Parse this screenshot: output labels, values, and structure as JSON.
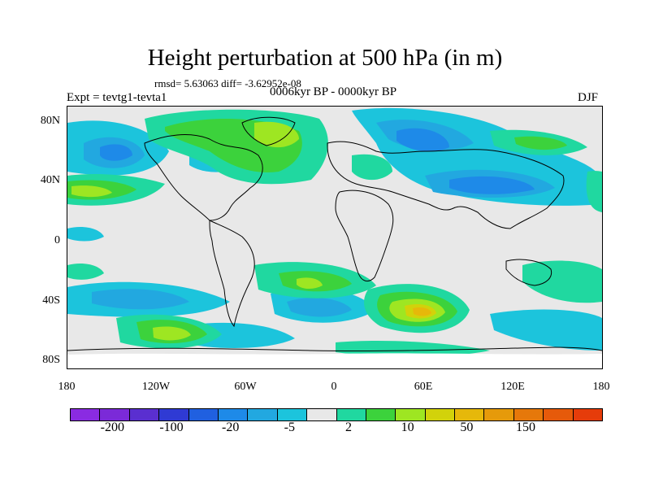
{
  "header": {
    "title": "Height perturbation at 500 hPa (in m)",
    "stats": "rmsd= 5.63063 diff= -3.62952e-08",
    "experiment": "Expt = tevtg1-tevta1",
    "period": "0006kyr BP - 0000kyr BP",
    "season": "DJF"
  },
  "map": {
    "lat_ticks": [
      "80N",
      "40N",
      "0",
      "40S",
      "80S"
    ],
    "lon_ticks": [
      "180",
      "120W",
      "60W",
      "0",
      "60E",
      "120E",
      "180"
    ]
  },
  "colorbar": {
    "colors": [
      "#8a2be2",
      "#7b2ad8",
      "#5a2fd0",
      "#2f3ad4",
      "#2060e0",
      "#1e8ae8",
      "#22a8e0",
      "#1cc4dc",
      "#e8e8e8",
      "#20d8a0",
      "#3cd23c",
      "#9ee622",
      "#d2d20a",
      "#e6b80a",
      "#e69a0a",
      "#e6780a",
      "#e65a0a",
      "#e63c0a"
    ],
    "labels": [
      "-200",
      "-100",
      "-20",
      "-5",
      "2",
      "10",
      "50",
      "150"
    ]
  }
}
